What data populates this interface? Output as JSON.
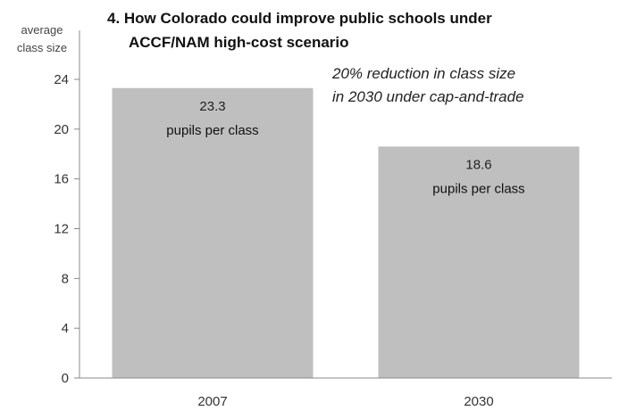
{
  "chart_data": {
    "type": "bar",
    "title_line1": "4. How Colorado could improve public schools under",
    "title_line2": "ACCF/NAM high-cost scenario",
    "ylabel_line1": "average",
    "ylabel_line2": "class size",
    "annotation_line1": "20% reduction in class size",
    "annotation_line2": "in 2030 under cap-and-trade",
    "categories": [
      "2007",
      "2030"
    ],
    "values": [
      23.3,
      18.6
    ],
    "value_labels": [
      "23.3",
      "18.6"
    ],
    "value_unit": "pupils per class",
    "yticks": [
      0,
      4,
      8,
      12,
      16,
      20,
      24
    ],
    "ylim": [
      0,
      24
    ],
    "bar_color": "#bfbfbf",
    "axis_color": "#888888",
    "grid": false,
    "legend": "none"
  }
}
